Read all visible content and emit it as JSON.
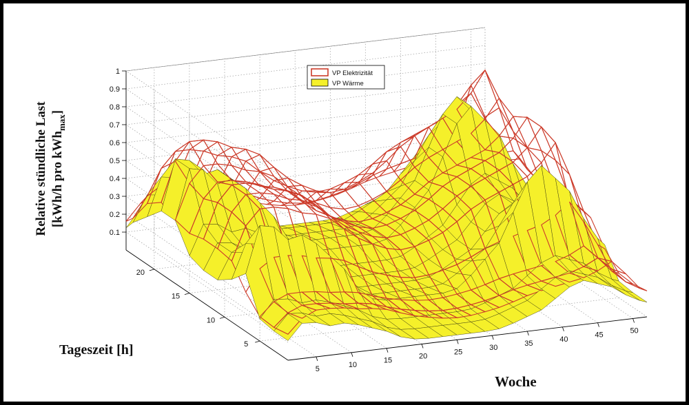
{
  "chart_data": {
    "type": "surface",
    "zlabel_line1": "Relative stündliche Last",
    "zlabel_line2_main": "[kWh/h pro kWh",
    "zlabel_line2_sub": "max",
    "zlabel_line2_end": "]",
    "ylabel": "Tageszeit [h]",
    "xlabel": "Woche",
    "x_ticks": [
      5,
      10,
      15,
      20,
      25,
      30,
      35,
      40,
      45,
      50
    ],
    "y_ticks": [
      5,
      10,
      15,
      20
    ],
    "z_ticks": [
      "0.1",
      "0.2",
      "0.3",
      "0.4",
      "0.5",
      "0.6",
      "0.7",
      "0.8",
      "0.9",
      "1"
    ],
    "xlim": [
      1,
      52
    ],
    "ylim": [
      1,
      24
    ],
    "zlim": [
      0,
      1
    ],
    "grid": true,
    "legend_position": "top-center",
    "series": [
      {
        "name": "VP Elektrizität",
        "style": "mesh",
        "color": "#cc3b2a",
        "weekly_level": [
          0.4,
          0.5,
          0.62,
          0.7,
          0.72,
          0.72,
          0.72,
          0.7,
          0.7,
          0.68,
          0.66,
          0.66,
          0.64,
          0.62,
          0.6,
          0.56,
          0.52,
          0.48,
          0.45,
          0.42,
          0.4,
          0.38,
          0.36,
          0.34,
          0.34,
          0.34,
          0.35,
          0.36,
          0.38,
          0.4,
          0.42,
          0.45,
          0.48,
          0.52,
          0.55,
          0.58,
          0.6,
          0.62,
          0.64,
          0.66,
          0.68,
          0.7,
          0.72,
          0.74,
          0.8,
          0.88,
          0.92,
          0.85,
          0.7,
          0.55,
          0.45,
          0.4
        ],
        "daily_profile": [
          0.15,
          0.12,
          0.1,
          0.1,
          0.12,
          0.2,
          0.4,
          0.65,
          0.8,
          0.85,
          0.85,
          0.9,
          0.85,
          0.8,
          0.78,
          0.8,
          0.85,
          0.95,
          1.0,
          0.95,
          0.8,
          0.6,
          0.35,
          0.2
        ]
      },
      {
        "name": "VP Wärme",
        "style": "surface",
        "color": "#f5f02a",
        "weekly_level": [
          0.4,
          0.55,
          0.72,
          0.75,
          0.7,
          0.65,
          0.6,
          0.6,
          0.62,
          0.6,
          0.55,
          0.5,
          0.45,
          0.4,
          0.35,
          0.3,
          0.2,
          0.15,
          0.12,
          0.1,
          0.1,
          0.1,
          0.1,
          0.1,
          0.1,
          0.1,
          0.1,
          0.1,
          0.1,
          0.1,
          0.12,
          0.15,
          0.2,
          0.25,
          0.3,
          0.35,
          0.4,
          0.5,
          0.6,
          0.7,
          0.8,
          0.85,
          0.9,
          0.85,
          0.8,
          0.75,
          0.7,
          0.6,
          0.5,
          0.4,
          0.35,
          0.3
        ],
        "daily_profile": [
          0.05,
          0.05,
          0.05,
          0.05,
          0.1,
          0.6,
          0.8,
          0.7,
          0.5,
          0.4,
          0.3,
          0.3,
          0.3,
          0.3,
          0.4,
          0.6,
          0.9,
          1.0,
          0.9,
          0.7,
          0.6,
          0.5,
          0.3,
          0.1
        ]
      }
    ]
  }
}
